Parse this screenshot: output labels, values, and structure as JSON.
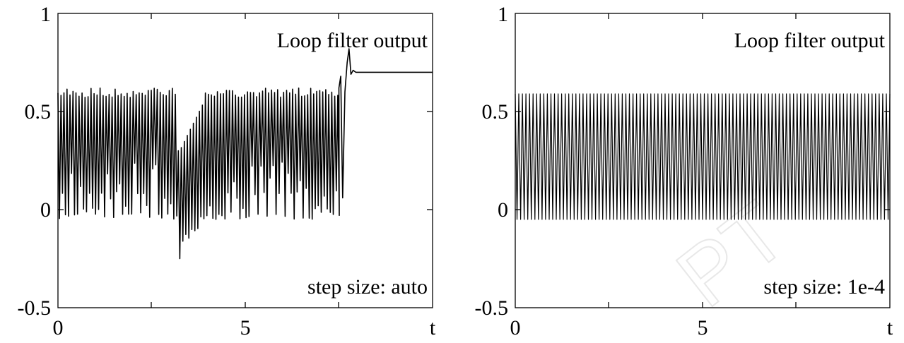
{
  "chart_data": [
    {
      "type": "line",
      "series": [
        {
          "x": [
            0,
            0.1,
            0.2,
            0.3,
            0.4,
            0.5,
            0.6,
            0.7,
            0.8,
            0.9,
            1.0,
            1.5,
            2.0,
            2.5,
            3.0,
            3.1,
            3.2,
            3.3,
            3.4,
            3.5,
            3.6,
            3.8,
            4.0,
            4.5,
            5.0,
            5.5,
            6.0,
            6.5,
            7.0,
            7.3,
            7.5,
            7.6,
            7.7,
            7.75,
            7.8,
            7.85,
            7.9,
            8.0,
            9.0,
            10.0
          ],
          "y": [
            0.58,
            -0.05,
            0.59,
            -0.04,
            0.6,
            -0.05,
            0.62,
            -0.04,
            0.6,
            -0.04,
            0.59,
            -0.05,
            0.6,
            -0.04,
            0.59,
            -0.1,
            -0.25,
            0.3,
            -0.15,
            0.45,
            -0.05,
            0.5,
            -0.04,
            0.6,
            -0.05,
            0.6,
            -0.04,
            0.6,
            -0.05,
            0.6,
            0.68,
            0.06,
            0.75,
            0.82,
            0.68,
            0.71,
            0.7,
            0.7,
            0.7,
            0.7
          ]
        }
      ],
      "xlim": [
        0,
        10
      ],
      "ylim": [
        -0.5,
        1
      ],
      "xticks": [
        "0",
        "5"
      ],
      "yticks": [
        "-0.5",
        "0",
        "0.5",
        "1"
      ],
      "xlabel": "t",
      "annotations": [
        "Loop filter output",
        "step size: auto"
      ],
      "grid": false
    },
    {
      "type": "line",
      "series": [
        {
          "x": [
            0,
            10
          ],
          "y": [
            -0.05,
            0.59
          ],
          "oscillation": {
            "min": -0.05,
            "max": 0.59,
            "cycles": 105
          }
        }
      ],
      "xlim": [
        0,
        10
      ],
      "ylim": [
        -0.5,
        1
      ],
      "xticks": [
        "0",
        "5"
      ],
      "yticks": [
        "-0.5",
        "0",
        "0.5",
        "1"
      ],
      "xlabel": "t",
      "annotations": [
        "Loop filter output",
        "step size: 1e-4"
      ],
      "grid": false
    }
  ],
  "labels": {
    "left": {
      "title": "Loop filter output",
      "step": "step size: auto",
      "xlabel": "t"
    },
    "right": {
      "title": "Loop filter output",
      "step": "step size: 1e-4",
      "xlabel": "t"
    },
    "y": {
      "one": "1",
      "half": "0.5",
      "zero": "0",
      "neg": "-0.5"
    },
    "x": {
      "zero": "0",
      "five": "5"
    }
  }
}
